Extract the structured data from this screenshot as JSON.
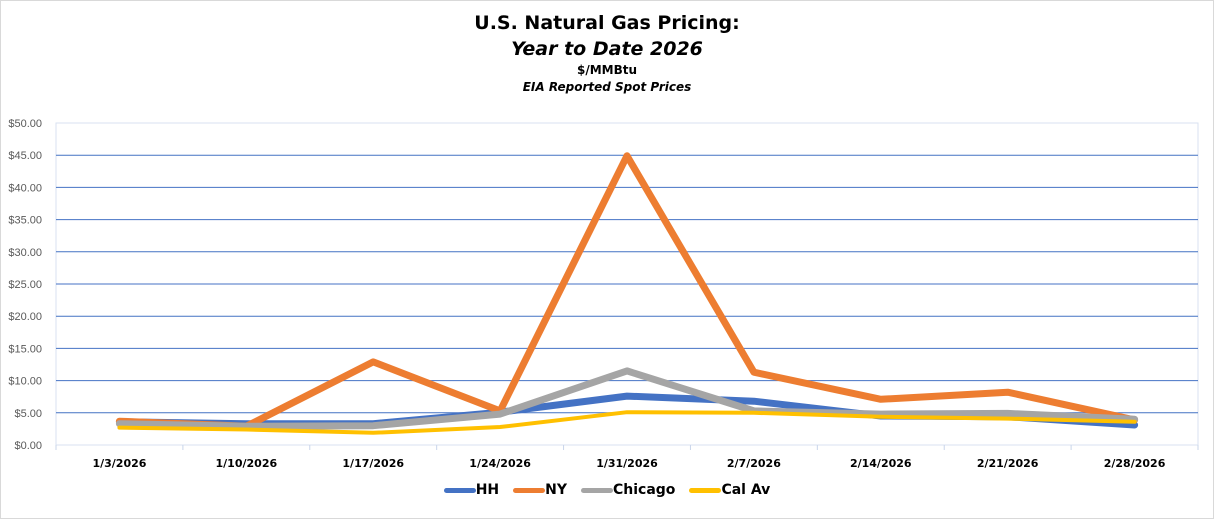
{
  "chart_data": {
    "type": "line",
    "title": "U.S. Natural Gas Pricing:",
    "subtitle": "Year to Date 2026",
    "units_label": "$/MMBtu",
    "source_label": "EIA Reported Spot Prices",
    "xlabel": "",
    "ylabel": "",
    "categories": [
      "1/3/2026",
      "1/10/2026",
      "1/17/2026",
      "1/24/2026",
      "1/31/2026",
      "2/7/2026",
      "2/14/2026",
      "2/21/2026",
      "2/28/2026"
    ],
    "ylim": [
      0,
      50
    ],
    "ytick_values": [
      0,
      5,
      10,
      15,
      20,
      25,
      30,
      35,
      40,
      45,
      50
    ],
    "ytick_labels": [
      "$0.00",
      "$5.00",
      "$10.00",
      "$15.00",
      "$20.00",
      "$25.00",
      "$30.00",
      "$35.00",
      "$40.00",
      "$45.00",
      "$50.00"
    ],
    "grid": "horizontal",
    "legend_position": "bottom",
    "series": [
      {
        "name": "HH",
        "color": "#4472C4",
        "values": [
          3.6,
          3.3,
          3.3,
          5.1,
          7.6,
          6.8,
          4.5,
          4.4,
          3.1
        ]
      },
      {
        "name": "NY",
        "color": "#ED7D31",
        "values": [
          3.7,
          2.9,
          12.9,
          5.3,
          44.9,
          11.3,
          7.1,
          8.2,
          3.9
        ]
      },
      {
        "name": "Chicago",
        "color": "#A5A5A5",
        "values": [
          3.3,
          2.9,
          3.0,
          4.8,
          11.5,
          5.3,
          4.8,
          4.9,
          4.0
        ]
      },
      {
        "name": "Cal Av",
        "color": "#FFC000",
        "values": [
          2.7,
          2.4,
          1.9,
          2.8,
          5.1,
          5.0,
          4.4,
          4.1,
          3.6
        ]
      }
    ]
  }
}
